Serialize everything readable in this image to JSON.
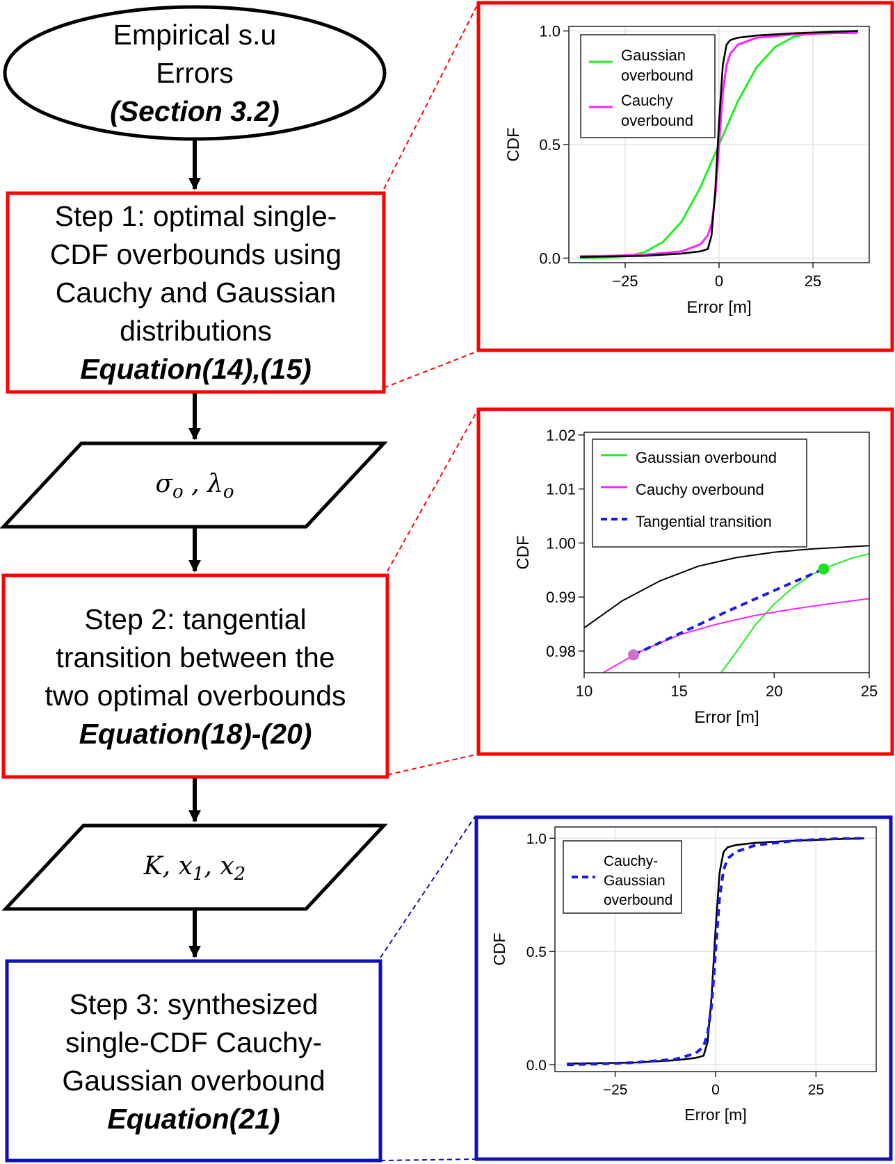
{
  "flowchart": {
    "start": {
      "line1": "Empirical s.u",
      "line2": "Errors",
      "ref": "(Section 3.2)"
    },
    "step1": {
      "line1": "Step 1: optimal single-",
      "line2": "CDF overbounds using",
      "line3": "Cauchy and Gaussian",
      "line4": "distributions",
      "ref": "Equation(14),(15)"
    },
    "params1": {
      "sym1": "σ",
      "sub1": "o",
      "sep": " , ",
      "sym2": "λ",
      "sub2": "o"
    },
    "step2": {
      "line1": "Step 2: tangential",
      "line2": "transition between the",
      "line3": "two optimal overbounds",
      "ref": "Equation(18)-(20)"
    },
    "params2": {
      "sym1": "K",
      "sep1": ", ",
      "sym2": "x",
      "sub2": "1",
      "sep2": ", ",
      "sym3": "x",
      "sub3": "2"
    },
    "step3": {
      "line1": "Step 3: synthesized",
      "line2": "single-CDF Cauchy-",
      "line3": "Gaussian overbound",
      "ref": "Equation(21)"
    }
  },
  "colors": {
    "red": "#ff0000",
    "blue": "#1010b8",
    "gaussian": "#22ee22",
    "cauchy": "#ff22ff",
    "transition": "#1a1aee",
    "empirical": "#000000",
    "tangent_point_cauchy": "#d070c8",
    "tangent_point_gaussian": "#22dd22"
  },
  "chart_data": [
    {
      "type": "line",
      "xlabel": "Error [m]",
      "ylabel": "CDF",
      "xlim": [
        -40,
        40
      ],
      "ylim": [
        -0.02,
        1.02
      ],
      "xticks": [
        -25,
        0,
        25
      ],
      "xtick_labels": [
        "−25",
        "0",
        "25"
      ],
      "yticks": [
        0.0,
        0.5,
        1.0
      ],
      "ytick_labels": [
        "0.0",
        "0.5",
        "1.0"
      ],
      "grid": true,
      "legend_position": "top-left",
      "legend": [
        {
          "line1": "Gaussian",
          "line2": "overbound",
          "series": "gaussian"
        },
        {
          "line1": "Cauchy",
          "line2": "overbound",
          "series": "cauchy"
        }
      ],
      "series": [
        {
          "key": "gaussian",
          "x": [
            -37,
            -30,
            -25,
            -20,
            -15,
            -10,
            -5,
            0,
            5,
            10,
            15,
            20,
            25,
            30,
            37
          ],
          "y": [
            0.0,
            0.002,
            0.008,
            0.025,
            0.07,
            0.16,
            0.31,
            0.5,
            0.69,
            0.84,
            0.93,
            0.975,
            0.992,
            0.998,
            1.0
          ]
        },
        {
          "key": "cauchy",
          "x": [
            -37,
            -30,
            -20,
            -10,
            -5,
            -3,
            -2,
            -1,
            0,
            1,
            2,
            3,
            5,
            10,
            20,
            30,
            37
          ],
          "y": [
            0.008,
            0.01,
            0.015,
            0.03,
            0.06,
            0.1,
            0.15,
            0.27,
            0.5,
            0.73,
            0.85,
            0.9,
            0.94,
            0.97,
            0.985,
            0.99,
            0.992
          ]
        },
        {
          "key": "empirical",
          "x": [
            -37,
            -20,
            -10,
            -5,
            -3,
            -2,
            -1,
            0,
            1,
            2,
            3,
            5,
            10,
            20,
            37
          ],
          "y": [
            0.005,
            0.01,
            0.02,
            0.03,
            0.04,
            0.1,
            0.3,
            0.6,
            0.85,
            0.94,
            0.96,
            0.97,
            0.98,
            0.99,
            1.0
          ]
        }
      ]
    },
    {
      "type": "line",
      "xlabel": "Error [m]",
      "ylabel": "CDF",
      "xlim": [
        10,
        25
      ],
      "ylim": [
        0.976,
        1.0205
      ],
      "xticks": [
        10,
        15,
        20,
        25
      ],
      "xtick_labels": [
        "10",
        "15",
        "20",
        "25"
      ],
      "yticks": [
        0.98,
        0.99,
        1.0,
        1.01,
        1.02
      ],
      "ytick_labels": [
        "0.98",
        "0.99",
        "1.00",
        "1.01",
        "1.02"
      ],
      "grid": false,
      "legend_position": "top-left",
      "legend": [
        {
          "line1": "Gaussian overbound",
          "series": "gaussian"
        },
        {
          "line1": "Cauchy overbound",
          "series": "cauchy"
        },
        {
          "line1": "Tangential transition",
          "series": "transition"
        }
      ],
      "series": [
        {
          "key": "empirical",
          "x": [
            10,
            12,
            14,
            16,
            18,
            20,
            22,
            25
          ],
          "y": [
            0.9843,
            0.9893,
            0.993,
            0.9957,
            0.9973,
            0.9983,
            0.9989,
            0.9995
          ]
        },
        {
          "key": "gaussian",
          "x": [
            17.2,
            18,
            19,
            20,
            21,
            22,
            23,
            24,
            25
          ],
          "y": [
            0.976,
            0.9798,
            0.9848,
            0.9887,
            0.9918,
            0.9942,
            0.9958,
            0.9971,
            0.998
          ]
        },
        {
          "key": "cauchy",
          "x": [
            11,
            12,
            13,
            14,
            15,
            17,
            19,
            21,
            23,
            25
          ],
          "y": [
            0.976,
            0.978,
            0.98,
            0.9815,
            0.983,
            0.985,
            0.9866,
            0.9878,
            0.9888,
            0.9897
          ]
        },
        {
          "key": "transition",
          "x": [
            12.6,
            15,
            17.5,
            20,
            22.6
          ],
          "y": [
            0.9793,
            0.9832,
            0.9873,
            0.9912,
            0.9952
          ]
        }
      ],
      "points": [
        {
          "x": 12.6,
          "y": 0.9793,
          "color_key": "tangent_point_cauchy"
        },
        {
          "x": 22.6,
          "y": 0.9952,
          "color_key": "tangent_point_gaussian"
        }
      ]
    },
    {
      "type": "line",
      "xlabel": "Error [m]",
      "ylabel": "CDF",
      "xlim": [
        -40,
        40
      ],
      "ylim": [
        -0.03,
        1.05
      ],
      "xticks": [
        -25,
        0,
        25
      ],
      "xtick_labels": [
        "−25",
        "0",
        "25"
      ],
      "yticks": [
        0.0,
        0.5,
        1.0
      ],
      "ytick_labels": [
        "0.0",
        "0.5",
        "1.0"
      ],
      "grid": true,
      "legend_position": "top-left",
      "legend": [
        {
          "line1": "Cauchy-",
          "line2": "Gaussian",
          "line3": "overbound",
          "series": "transition"
        }
      ],
      "series": [
        {
          "key": "empirical",
          "x": [
            -37,
            -20,
            -10,
            -5,
            -3,
            -2,
            -1,
            0,
            1,
            2,
            3,
            5,
            10,
            20,
            37
          ],
          "y": [
            0.005,
            0.01,
            0.02,
            0.03,
            0.04,
            0.1,
            0.3,
            0.6,
            0.85,
            0.94,
            0.96,
            0.97,
            0.98,
            0.99,
            1.0
          ]
        },
        {
          "key": "transition",
          "x": [
            -37,
            -30,
            -20,
            -10,
            -5,
            -3,
            -2,
            -1,
            0,
            1,
            2,
            3,
            5,
            10,
            20,
            30,
            37
          ],
          "y": [
            0.0,
            0.003,
            0.01,
            0.025,
            0.05,
            0.08,
            0.14,
            0.26,
            0.5,
            0.74,
            0.86,
            0.91,
            0.94,
            0.97,
            0.99,
            0.998,
            1.0
          ]
        }
      ]
    }
  ]
}
